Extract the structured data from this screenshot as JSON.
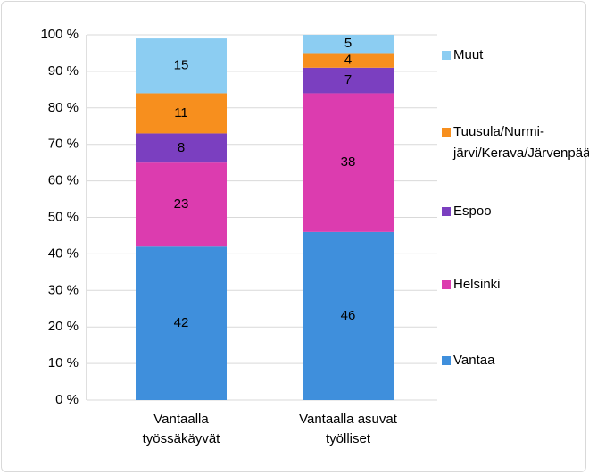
{
  "chart_data": {
    "type": "stacked_bar",
    "categories": [
      "Vantaalla työssäkäyvät",
      "Vantaalla asuvat työlliset"
    ],
    "series": [
      {
        "name": "Vantaa",
        "color": "#3f8fdc",
        "values": [
          42,
          46
        ]
      },
      {
        "name": "Helsinki",
        "color": "#dc3caf",
        "values": [
          23,
          38
        ]
      },
      {
        "name": "Espoo",
        "color": "#7b3fc0",
        "values": [
          8,
          7
        ]
      },
      {
        "name": "Tuusula/Nurmi-järvi/Kerava/Järvenpää",
        "color": "#f78f1e",
        "values": [
          11,
          4
        ]
      },
      {
        "name": "Muut",
        "color": "#8ccdf2",
        "values": [
          15,
          5
        ]
      }
    ],
    "ylim": [
      0,
      100
    ],
    "yticks": [
      {
        "value": 0,
        "label": "0 %"
      },
      {
        "value": 10,
        "label": "10 %"
      },
      {
        "value": 20,
        "label": "20 %"
      },
      {
        "value": 30,
        "label": "30 %"
      },
      {
        "value": 40,
        "label": "40 %"
      },
      {
        "value": 50,
        "label": "50 %"
      },
      {
        "value": 60,
        "label": "60 %"
      },
      {
        "value": 70,
        "label": "70 %"
      },
      {
        "value": 80,
        "label": "80 %"
      },
      {
        "value": 90,
        "label": "90 %"
      },
      {
        "value": 100,
        "label": "100 %"
      }
    ],
    "grid": true,
    "legend": "right"
  }
}
